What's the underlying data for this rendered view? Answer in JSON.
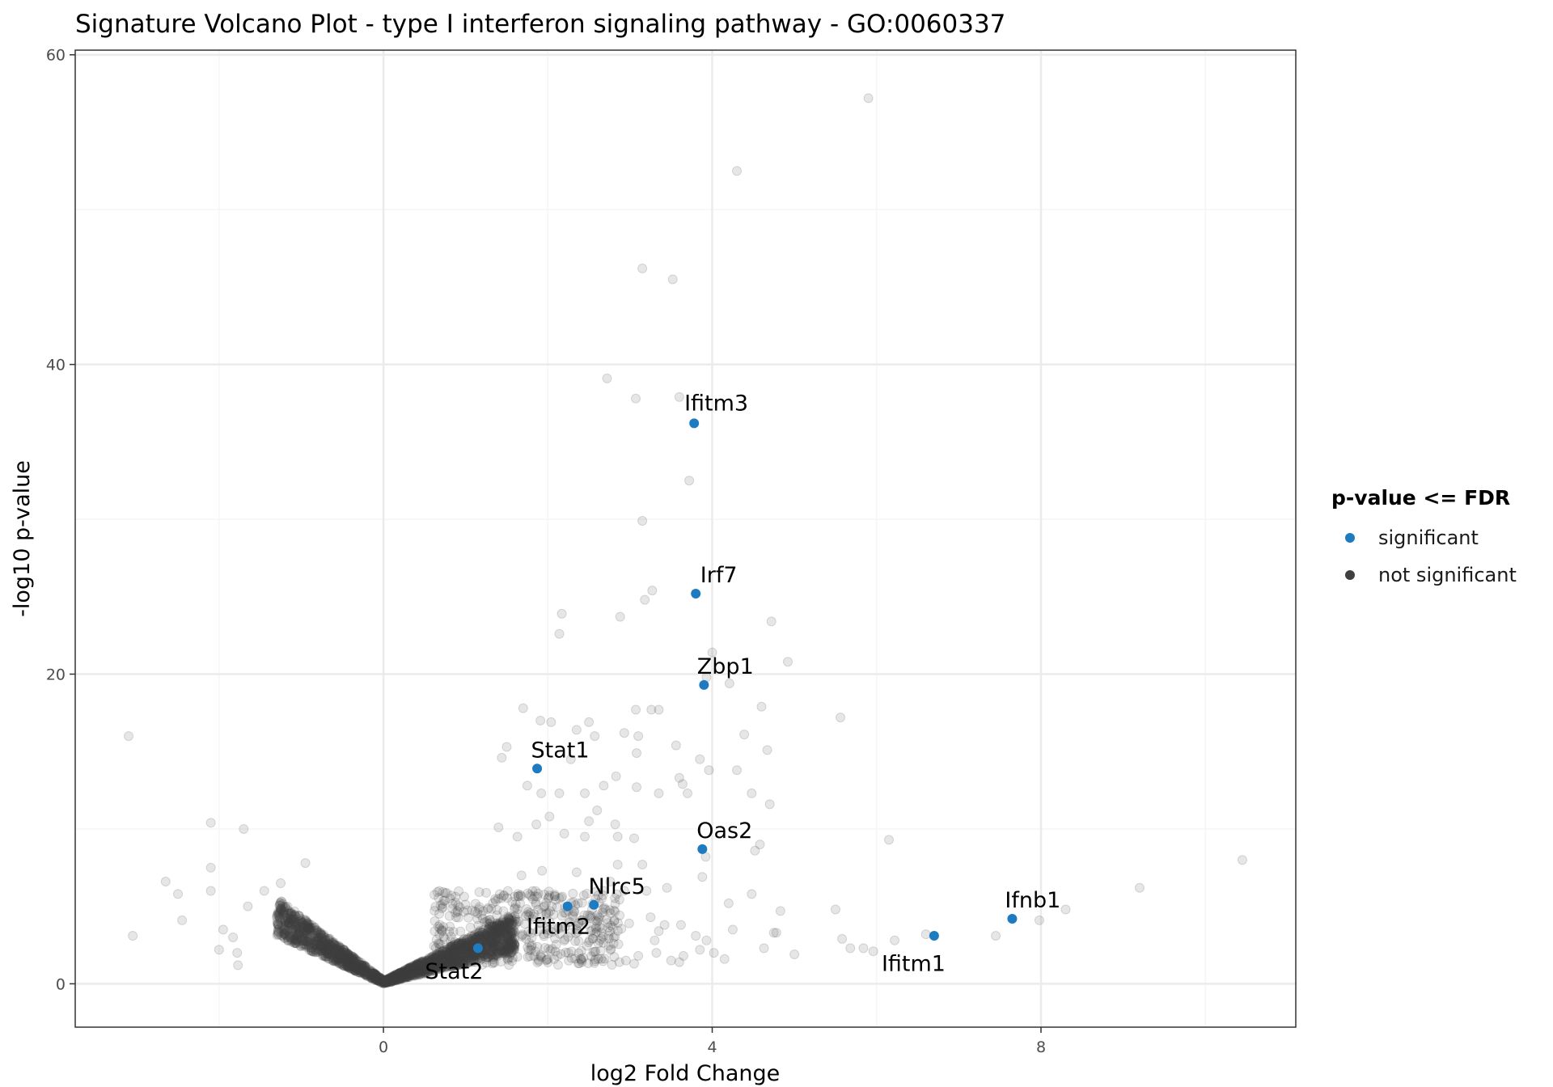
{
  "chart_data": {
    "type": "scatter",
    "title": "Signature Volcano Plot - type I interferon signaling pathway - GO:0060337",
    "xlabel": "log2 Fold Change",
    "ylabel": "-log10 p-value",
    "xlim": [
      -3.75,
      11.1
    ],
    "ylim": [
      -2.8,
      60.3
    ],
    "xticks": [
      0,
      4,
      8
    ],
    "yticks": [
      0,
      20,
      40,
      60
    ],
    "grid": true,
    "legend": {
      "title": "p-value <= FDR",
      "position": "right",
      "entries": [
        {
          "label": "significant",
          "color": "#1f7bbf"
        },
        {
          "label": "not significant",
          "color": "#404040"
        }
      ]
    },
    "colors": {
      "significant": "#1f7bbf",
      "not_significant": "#404040",
      "grid_major": "#ebebeb",
      "grid_minor": "#f5f5f5",
      "panel_border": "#333333"
    },
    "significant_points": [
      {
        "gene": "Ifitm3",
        "x": 3.78,
        "y": 36.2
      },
      {
        "gene": "Irf7",
        "x": 3.8,
        "y": 25.2
      },
      {
        "gene": "Zbp1",
        "x": 3.9,
        "y": 19.3
      },
      {
        "gene": "Stat1",
        "x": 1.87,
        "y": 13.9
      },
      {
        "gene": "Oas2",
        "x": 3.88,
        "y": 8.7
      },
      {
        "gene": "Nlrc5",
        "x": 2.56,
        "y": 5.1
      },
      {
        "gene": "Ifitm2",
        "x": 2.24,
        "y": 5.0
      },
      {
        "gene": "Stat2",
        "x": 1.15,
        "y": 2.3
      },
      {
        "gene": "Ifitm1",
        "x": 6.7,
        "y": 3.1
      },
      {
        "gene": "Ifnb1",
        "x": 7.65,
        "y": 4.2
      }
    ],
    "background_points": [
      [
        5.9,
        57.2
      ],
      [
        4.3,
        52.5
      ],
      [
        3.15,
        46.2
      ],
      [
        3.52,
        45.5
      ],
      [
        2.72,
        39.1
      ],
      [
        3.07,
        37.8
      ],
      [
        3.6,
        37.9
      ],
      [
        3.72,
        32.5
      ],
      [
        3.15,
        29.9
      ],
      [
        3.27,
        25.4
      ],
      [
        3.18,
        24.8
      ],
      [
        2.88,
        23.7
      ],
      [
        2.17,
        23.9
      ],
      [
        2.14,
        22.6
      ],
      [
        4.72,
        23.4
      ],
      [
        4.92,
        20.8
      ],
      [
        4.0,
        21.4
      ],
      [
        3.93,
        19.8
      ],
      [
        4.21,
        19.4
      ],
      [
        4.6,
        17.9
      ],
      [
        5.56,
        17.2
      ],
      [
        -3.1,
        16.0
      ],
      [
        1.7,
        17.8
      ],
      [
        1.91,
        17.0
      ],
      [
        2.5,
        16.9
      ],
      [
        2.04,
        16.9
      ],
      [
        3.07,
        17.7
      ],
      [
        3.26,
        17.7
      ],
      [
        3.35,
        17.7
      ],
      [
        2.35,
        16.4
      ],
      [
        2.57,
        16.0
      ],
      [
        2.93,
        16.2
      ],
      [
        3.1,
        16.0
      ],
      [
        3.56,
        15.4
      ],
      [
        3.08,
        14.9
      ],
      [
        1.5,
        15.3
      ],
      [
        1.44,
        14.6
      ],
      [
        2.28,
        14.5
      ],
      [
        3.85,
        14.5
      ],
      [
        3.96,
        13.8
      ],
      [
        4.3,
        13.8
      ],
      [
        4.39,
        16.1
      ],
      [
        4.67,
        15.1
      ],
      [
        3.6,
        13.3
      ],
      [
        2.68,
        12.8
      ],
      [
        2.83,
        13.4
      ],
      [
        3.08,
        12.7
      ],
      [
        3.7,
        12.3
      ],
      [
        3.35,
        12.3
      ],
      [
        3.64,
        12.9
      ],
      [
        4.48,
        12.3
      ],
      [
        4.7,
        11.6
      ],
      [
        1.75,
        12.8
      ],
      [
        1.92,
        12.3
      ],
      [
        2.14,
        12.3
      ],
      [
        2.45,
        12.3
      ],
      [
        2.02,
        10.8
      ],
      [
        1.86,
        10.3
      ],
      [
        2.5,
        10.5
      ],
      [
        2.6,
        11.2
      ],
      [
        2.82,
        10.3
      ],
      [
        1.4,
        10.1
      ],
      [
        1.63,
        9.5
      ],
      [
        2.2,
        9.7
      ],
      [
        2.45,
        9.5
      ],
      [
        2.85,
        9.5
      ],
      [
        3.05,
        9.4
      ],
      [
        4.58,
        9.0
      ],
      [
        4.52,
        8.6
      ],
      [
        3.92,
        8.2
      ],
      [
        3.15,
        7.7
      ],
      [
        2.85,
        7.7
      ],
      [
        2.35,
        7.2
      ],
      [
        1.93,
        7.3
      ],
      [
        1.68,
        7.0
      ],
      [
        6.15,
        9.3
      ],
      [
        2.76,
        6.6
      ],
      [
        3.45,
        6.2
      ],
      [
        3.88,
        6.9
      ],
      [
        2.68,
        6.0
      ],
      [
        2.93,
        6.0
      ],
      [
        3.2,
        6.0
      ],
      [
        -2.65,
        6.6
      ],
      [
        -2.5,
        5.8
      ],
      [
        -2.1,
        10.4
      ],
      [
        -1.7,
        10.0
      ],
      [
        -2.1,
        7.5
      ],
      [
        -2.1,
        6.0
      ],
      [
        -1.65,
        5.0
      ],
      [
        -1.25,
        6.5
      ],
      [
        -0.95,
        7.8
      ],
      [
        -1.45,
        6.0
      ],
      [
        -2.45,
        4.1
      ],
      [
        -1.95,
        3.5
      ],
      [
        -1.83,
        3.0
      ],
      [
        -2.0,
        2.2
      ],
      [
        -1.78,
        2.0
      ],
      [
        -1.77,
        1.2
      ],
      [
        -3.05,
        3.1
      ],
      [
        4.48,
        5.8
      ],
      [
        4.83,
        4.7
      ],
      [
        5.5,
        4.8
      ],
      [
        4.75,
        3.3
      ],
      [
        4.78,
        3.3
      ],
      [
        5.0,
        1.9
      ],
      [
        5.58,
        2.9
      ],
      [
        5.68,
        2.3
      ],
      [
        5.84,
        2.3
      ],
      [
        5.96,
        2.1
      ],
      [
        6.22,
        2.8
      ],
      [
        6.6,
        3.2
      ],
      [
        7.45,
        3.1
      ],
      [
        8.3,
        4.8
      ],
      [
        9.2,
        6.2
      ],
      [
        10.45,
        8.0
      ],
      [
        7.98,
        4.1
      ],
      [
        4.25,
        3.5
      ],
      [
        4.2,
        5.2
      ],
      [
        4.02,
        2.0
      ],
      [
        4.15,
        1.6
      ],
      [
        3.8,
        3.1
      ],
      [
        3.93,
        2.8
      ],
      [
        3.85,
        2.2
      ],
      [
        3.6,
        1.4
      ],
      [
        3.65,
        1.8
      ],
      [
        3.35,
        3.4
      ],
      [
        3.3,
        2.8
      ],
      [
        3.32,
        2.0
      ],
      [
        3.1,
        1.8
      ],
      [
        2.95,
        1.5
      ],
      [
        2.8,
        2.6
      ],
      [
        2.65,
        3.3
      ],
      [
        2.55,
        2.9
      ],
      [
        2.6,
        4.0
      ],
      [
        2.7,
        4.8
      ],
      [
        3.25,
        4.3
      ],
      [
        3.42,
        3.8
      ],
      [
        2.4,
        1.6
      ],
      [
        2.25,
        2.0
      ],
      [
        2.13,
        3.6
      ],
      [
        2.0,
        1.6
      ],
      [
        1.95,
        3.2
      ],
      [
        1.85,
        2.1
      ],
      [
        2.65,
        1.6
      ],
      [
        2.87,
        1.4
      ],
      [
        3.05,
        1.3
      ],
      [
        2.99,
        3.9
      ],
      [
        3.5,
        1.5
      ],
      [
        3.62,
        3.8
      ],
      [
        4.63,
        2.3
      ]
    ],
    "labels": [
      {
        "gene": "Ifitm3",
        "x": 4.05,
        "y": 37.5
      },
      {
        "gene": "Irf7",
        "x": 4.08,
        "y": 26.4
      },
      {
        "gene": "Zbp1",
        "x": 4.16,
        "y": 20.5
      },
      {
        "gene": "Stat1",
        "x": 2.15,
        "y": 15.1
      },
      {
        "gene": "Oas2",
        "x": 4.15,
        "y": 9.9
      },
      {
        "gene": "Nlrc5",
        "x": 2.84,
        "y": 6.3
      },
      {
        "gene": "Ifitm2",
        "x": 2.13,
        "y": 3.7
      },
      {
        "gene": "Stat2",
        "x": 0.86,
        "y": 0.8
      },
      {
        "gene": "Ifitm1",
        "x": 6.45,
        "y": 1.3
      },
      {
        "gene": "Ifnb1",
        "x": 7.9,
        "y": 5.4
      }
    ]
  }
}
